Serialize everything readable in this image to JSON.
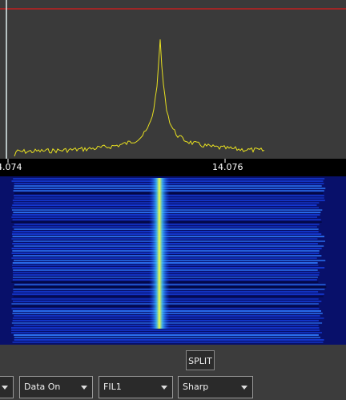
{
  "spectrum": {
    "freq_labels": [
      "4.074",
      "14.076"
    ]
  },
  "controls": {
    "split": "SPLIT",
    "dropdowns": [
      "Data On",
      "FIL1",
      "Sharp"
    ]
  }
}
